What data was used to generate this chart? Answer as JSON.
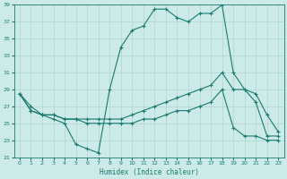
{
  "title": "",
  "xlabel": "Humidex (Indice chaleur)",
  "xlim": [
    -0.5,
    23.5
  ],
  "ylim": [
    21,
    39
  ],
  "yticks": [
    21,
    23,
    25,
    27,
    29,
    31,
    33,
    35,
    37,
    39
  ],
  "xticks": [
    0,
    1,
    2,
    3,
    4,
    5,
    6,
    7,
    8,
    9,
    10,
    11,
    12,
    13,
    14,
    15,
    16,
    17,
    18,
    19,
    20,
    21,
    22,
    23
  ],
  "bg_color": "#cceae8",
  "grid_color": "#b0d5d2",
  "line_color": "#1a7a70",
  "line1_x": [
    0,
    1,
    2,
    3,
    4,
    5,
    6,
    7,
    8,
    9,
    10,
    11,
    12,
    13,
    14,
    15,
    16,
    17,
    18,
    19,
    20,
    21,
    22,
    23
  ],
  "line1_y": [
    28.5,
    27.0,
    26.0,
    25.5,
    25.0,
    22.5,
    22.0,
    21.5,
    29.0,
    34.0,
    36.0,
    36.5,
    38.5,
    38.5,
    37.5,
    37.0,
    38.0,
    38.0,
    39.0,
    31.0,
    29.0,
    27.5,
    23.5,
    23.5
  ],
  "line2_x": [
    0,
    1,
    2,
    3,
    4,
    5,
    6,
    7,
    8,
    9,
    10,
    11,
    12,
    13,
    14,
    15,
    16,
    17,
    18,
    19,
    20,
    21,
    22,
    23
  ],
  "line2_y": [
    28.5,
    26.5,
    26.0,
    26.0,
    25.5,
    25.5,
    25.5,
    25.5,
    25.5,
    25.5,
    26.0,
    26.5,
    27.0,
    27.5,
    28.0,
    28.5,
    29.0,
    29.5,
    31.0,
    29.0,
    29.0,
    28.5,
    26.0,
    24.0
  ],
  "line3_x": [
    0,
    1,
    2,
    3,
    4,
    5,
    6,
    7,
    8,
    9,
    10,
    11,
    12,
    13,
    14,
    15,
    16,
    17,
    18,
    19,
    20,
    21,
    22,
    23
  ],
  "line3_y": [
    28.5,
    26.5,
    26.0,
    26.0,
    25.5,
    25.5,
    25.0,
    25.0,
    25.0,
    25.0,
    25.0,
    25.5,
    25.5,
    26.0,
    26.5,
    26.5,
    27.0,
    27.5,
    29.0,
    24.5,
    23.5,
    23.5,
    23.0,
    23.0
  ]
}
